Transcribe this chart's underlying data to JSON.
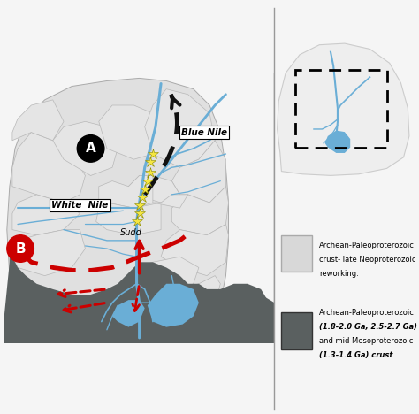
{
  "fig_width": 4.74,
  "fig_height": 4.68,
  "dpi": 100,
  "bg_color": "#f5f5f5",
  "map_bg": "#f5f5f5",
  "land_color": "#e0e0e0",
  "land_edge": "#aaaaaa",
  "dark_zone_color": "#5a6060",
  "dark_zone_edge": "#444444",
  "blue_river": "#6aaed6",
  "blue_lake": "#6aaed6",
  "red_color": "#cc0000",
  "star_color": "#f5e642",
  "star_edge": "#888800",
  "black_arrow": "#111111",
  "legend_light": "#d8d8d8",
  "legend_dark": "#5a6060",
  "inset_bg": "#ffffff",
  "white_color": "#ffffff",
  "label_A": "A",
  "label_B": "B",
  "label_blue_nile": "Blue Nile",
  "label_white_nile": "White  Nile",
  "label_sudd": "Sudd",
  "legend_text_1": "Archean-Paleoproterozoic\ncrust- late Neoproterozoic\nreworking.",
  "legend_text_2_line1": "Archean-Paleoproterozoic",
  "legend_text_2_line2": "(1.8-2.0 Ga, 2.5-2.7 Ga)",
  "legend_text_2_line3": "and mid Mesoproterozoic",
  "legend_text_2_line4": "(1.3-1.4 Ga) crust"
}
